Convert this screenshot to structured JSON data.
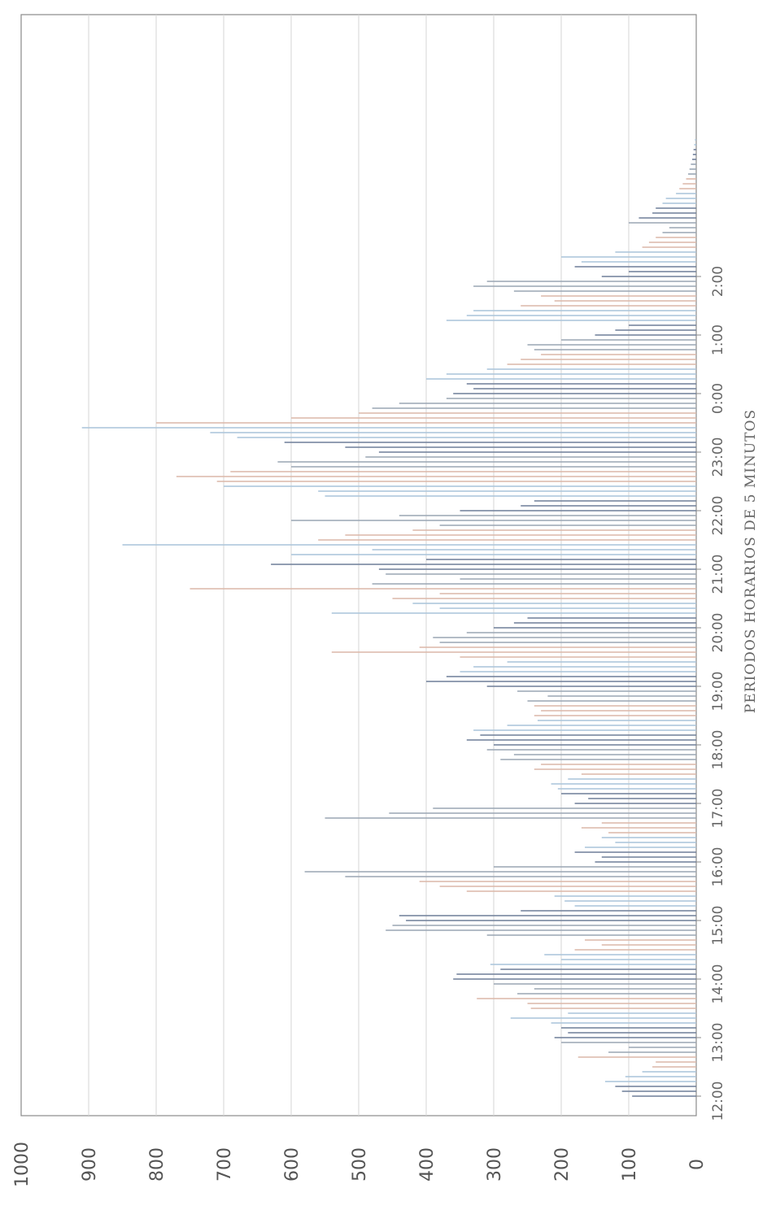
{
  "chart_data": {
    "type": "bar",
    "title": "",
    "xlabel": "PERIODOS HORARIOS DE 5 MINUTOS",
    "ylabel": "",
    "ylim": [
      0,
      1000
    ],
    "y_ticks": [
      0,
      100,
      200,
      300,
      400,
      500,
      600,
      700,
      800,
      900,
      1000
    ],
    "x_tick_labels": [
      "12:00",
      "13:00",
      "14:00",
      "15:00",
      "16:00",
      "17:00",
      "18:00",
      "19:00",
      "20:00",
      "21:00",
      "22:00",
      "23:00",
      "0:00",
      "1:00",
      "2:00"
    ],
    "grid": true,
    "orientation": "rotated-90-clockwise",
    "series_colors": [
      "#6f7f99",
      "#a9c4da",
      "#dcb7a8",
      "#9aa6b4"
    ],
    "period_minutes": 5,
    "values": [
      95,
      110,
      120,
      135,
      105,
      80,
      65,
      60,
      175,
      130,
      100,
      200,
      210,
      190,
      200,
      215,
      275,
      190,
      245,
      250,
      325,
      265,
      240,
      300,
      360,
      355,
      290,
      305,
      200,
      225,
      180,
      140,
      165,
      310,
      460,
      450,
      430,
      440,
      260,
      180,
      195,
      210,
      340,
      380,
      410,
      520,
      580,
      300,
      150,
      140,
      180,
      165,
      120,
      140,
      130,
      170,
      140,
      550,
      455,
      390,
      180,
      160,
      200,
      205,
      215,
      190,
      170,
      240,
      230,
      290,
      270,
      310,
      300,
      340,
      320,
      330,
      280,
      235,
      240,
      230,
      240,
      250,
      220,
      265,
      310,
      400,
      370,
      350,
      330,
      280,
      350,
      540,
      410,
      380,
      390,
      340,
      300,
      270,
      250,
      540,
      380,
      420,
      450,
      380,
      750,
      480,
      350,
      460,
      470,
      630,
      400,
      600,
      480,
      850,
      560,
      520,
      420,
      380,
      600,
      440,
      350,
      260,
      240,
      550,
      560,
      700,
      710,
      770,
      690,
      600,
      620,
      490,
      470,
      520,
      610,
      680,
      720,
      910,
      800,
      600,
      500,
      480,
      440,
      370,
      360,
      330,
      340,
      400,
      370,
      310,
      280,
      260,
      230,
      240,
      250,
      200,
      150,
      120,
      100,
      370,
      340,
      330,
      260,
      210,
      230,
      270,
      330,
      310,
      140,
      100,
      180,
      170,
      200,
      120,
      80,
      70,
      60,
      50,
      40,
      100,
      85,
      65,
      60,
      50,
      45,
      30,
      25,
      20,
      15,
      12,
      10,
      8,
      6,
      5,
      4,
      3,
      2
    ]
  }
}
